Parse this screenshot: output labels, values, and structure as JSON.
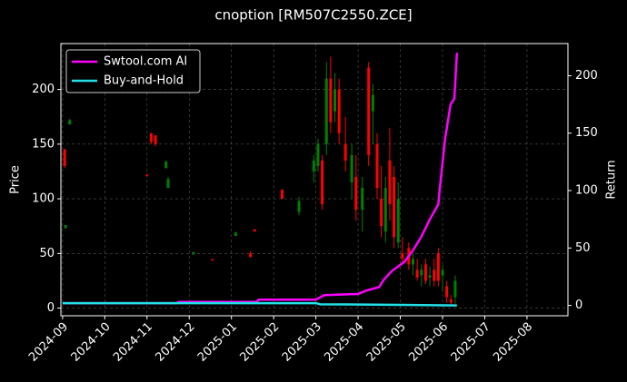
{
  "chart_data": {
    "type": "candlestick",
    "title": "cnoption [RM507C2550.ZCE]",
    "ylabel": "Price",
    "y2label": "Return",
    "xlim": [
      -0.04,
      11.97
    ],
    "xticks": [
      {
        "value": 0,
        "label": "2024-09"
      },
      {
        "value": 1,
        "label": "2024-10"
      },
      {
        "value": 2,
        "label": "2024-11"
      },
      {
        "value": 3,
        "label": "2024-12"
      },
      {
        "value": 4,
        "label": "2025-01"
      },
      {
        "value": 5,
        "label": "2025-02"
      },
      {
        "value": 6,
        "label": "2025-03"
      },
      {
        "value": 7,
        "label": "2025-04"
      },
      {
        "value": 8,
        "label": "2025-05"
      },
      {
        "value": 9,
        "label": "2025-06"
      },
      {
        "value": 10,
        "label": "2025-07"
      },
      {
        "value": 11,
        "label": "2025-08"
      }
    ],
    "ylim": [
      -7,
      242
    ],
    "yticks": [
      0,
      50,
      100,
      150,
      200
    ],
    "y2lim": [
      -9,
      228
    ],
    "y2ticks": [
      0,
      50,
      100,
      150,
      200
    ],
    "grid": true,
    "legend": "upper-left",
    "up_color": "#008000",
    "down_color": "#ff0000",
    "candles": {
      "x": [
        0.05,
        0.07,
        0.17,
        2.0,
        2.1,
        2.2,
        2.45,
        2.5,
        3.1,
        3.55,
        4.1,
        4.45,
        4.55,
        5.2,
        5.6,
        5.95,
        6.05,
        6.15,
        6.25,
        6.35,
        6.45,
        6.55,
        6.7,
        6.85,
        6.95,
        7.1,
        7.25,
        7.35,
        7.45,
        7.55,
        7.65,
        7.75,
        7.85,
        7.95,
        8.05,
        8.2,
        8.3,
        8.4,
        8.5,
        8.6,
        8.7,
        8.8,
        8.9,
        9.0,
        9.1,
        9.2,
        9.3
      ],
      "open": [
        145,
        73,
        168,
        122,
        160,
        158,
        128,
        110,
        49,
        45,
        66,
        50,
        72,
        108,
        88,
        125,
        130,
        135,
        150,
        210,
        180,
        200,
        150,
        115,
        120,
        90,
        220,
        180,
        150,
        100,
        70,
        135,
        120,
        60,
        50,
        55,
        40,
        35,
        30,
        40,
        28,
        35,
        50,
        30,
        20,
        8,
        10
      ],
      "high": [
        146,
        76,
        173,
        123,
        160,
        158,
        135,
        120,
        52,
        45,
        70,
        52,
        72,
        109,
        102,
        140,
        155,
        140,
        225,
        230,
        215,
        210,
        175,
        150,
        140,
        120,
        225,
        205,
        160,
        130,
        120,
        165,
        130,
        115,
        65,
        60,
        50,
        45,
        40,
        45,
        38,
        45,
        55,
        40,
        25,
        12,
        30
      ],
      "low": [
        128,
        73,
        168,
        120,
        150,
        148,
        128,
        110,
        49,
        43,
        66,
        46,
        70,
        100,
        85,
        115,
        125,
        90,
        140,
        160,
        170,
        150,
        125,
        100,
        80,
        70,
        130,
        150,
        100,
        65,
        60,
        80,
        55,
        55,
        40,
        35,
        30,
        25,
        20,
        22,
        20,
        20,
        20,
        15,
        5,
        2,
        4
      ],
      "close": [
        130,
        76,
        172,
        121,
        152,
        150,
        134,
        118,
        51,
        44,
        69,
        47,
        70,
        100,
        98,
        135,
        150,
        95,
        210,
        170,
        200,
        160,
        135,
        140,
        90,
        110,
        140,
        195,
        110,
        75,
        110,
        95,
        65,
        100,
        45,
        40,
        45,
        28,
        35,
        25,
        30,
        25,
        25,
        35,
        10,
        5,
        25
      ]
    },
    "series": [
      {
        "name": "Swtool.com AI",
        "color": "#ff00ff",
        "axis": "y2",
        "x": [
          0,
          2.7,
          2.75,
          4.6,
          4.65,
          6.0,
          6.2,
          7.0,
          7.2,
          7.5,
          7.6,
          7.8,
          8.1,
          8.3,
          8.5,
          8.7,
          8.9,
          8.93,
          9.06,
          9.19,
          9.28,
          9.34
        ],
        "values": [
          2,
          2,
          3,
          3,
          5,
          5,
          9,
          10,
          13,
          16,
          22,
          30,
          38,
          48,
          60,
          75,
          88,
          100,
          145,
          175,
          180,
          220
        ]
      },
      {
        "name": "Buy-and-Hold",
        "color": "#22e0e8",
        "axis": "y2",
        "x": [
          0,
          2.2,
          6.0,
          6.1,
          8.0,
          9.34
        ],
        "values": [
          2,
          2,
          2,
          1,
          0.5,
          0
        ]
      }
    ]
  }
}
